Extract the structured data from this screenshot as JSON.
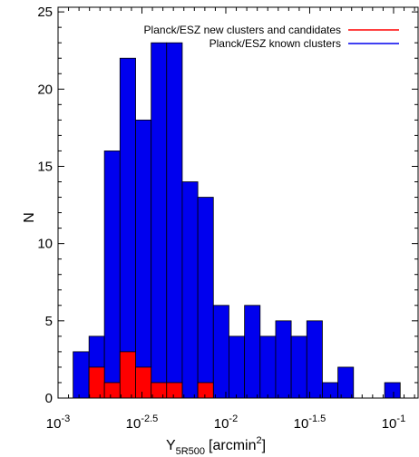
{
  "chart_data": {
    "type": "bar",
    "title": "",
    "xlabel": "Y",
    "xlabel_sub": "5R500",
    "xlabel_unit": "[arcmin",
    "xlabel_unit_sup": "2",
    "xlabel_unit_close": "]",
    "ylabel": "N",
    "x_scale": "log",
    "xlim": [
      0.001,
      0.14
    ],
    "ylim": [
      0,
      25.3
    ],
    "grid": false,
    "legend_position": "top-right",
    "x_ticks": [
      {
        "value": 0.001,
        "base": "10",
        "exp": "-3"
      },
      {
        "value": 0.0031623,
        "base": "10",
        "exp": "-2.5"
      },
      {
        "value": 0.01,
        "base": "10",
        "exp": "-2"
      },
      {
        "value": 0.031623,
        "base": "10",
        "exp": "-1.5"
      },
      {
        "value": 0.1,
        "base": "10",
        "exp": "-1"
      }
    ],
    "y_ticks": [
      0,
      5,
      10,
      15,
      20,
      25
    ],
    "bin_edges": [
      0.00123,
      0.00153,
      0.00189,
      0.00234,
      0.0029,
      0.00359,
      0.00444,
      0.0055,
      0.00681,
      0.00843,
      0.01044,
      0.01293,
      0.01601,
      0.01982,
      0.02454,
      0.03039,
      0.03763,
      0.04659,
      0.05769,
      0.07143,
      0.08845,
      0.10953
    ],
    "series": [
      {
        "name": "Planck/ESZ known clusters",
        "color": "#0000ee",
        "values": [
          3,
          4,
          16,
          22,
          18,
          23,
          23,
          14,
          13,
          6,
          4,
          6,
          4,
          5,
          4,
          5,
          1,
          2,
          0,
          0,
          1
        ]
      },
      {
        "name": "Planck/ESZ new clusters and candidates",
        "color": "#ff0000",
        "values": [
          0,
          2,
          1,
          3,
          2,
          1,
          1,
          0,
          1,
          0,
          0,
          0,
          0,
          0,
          0,
          0,
          0,
          0,
          0,
          0,
          0
        ]
      }
    ]
  }
}
